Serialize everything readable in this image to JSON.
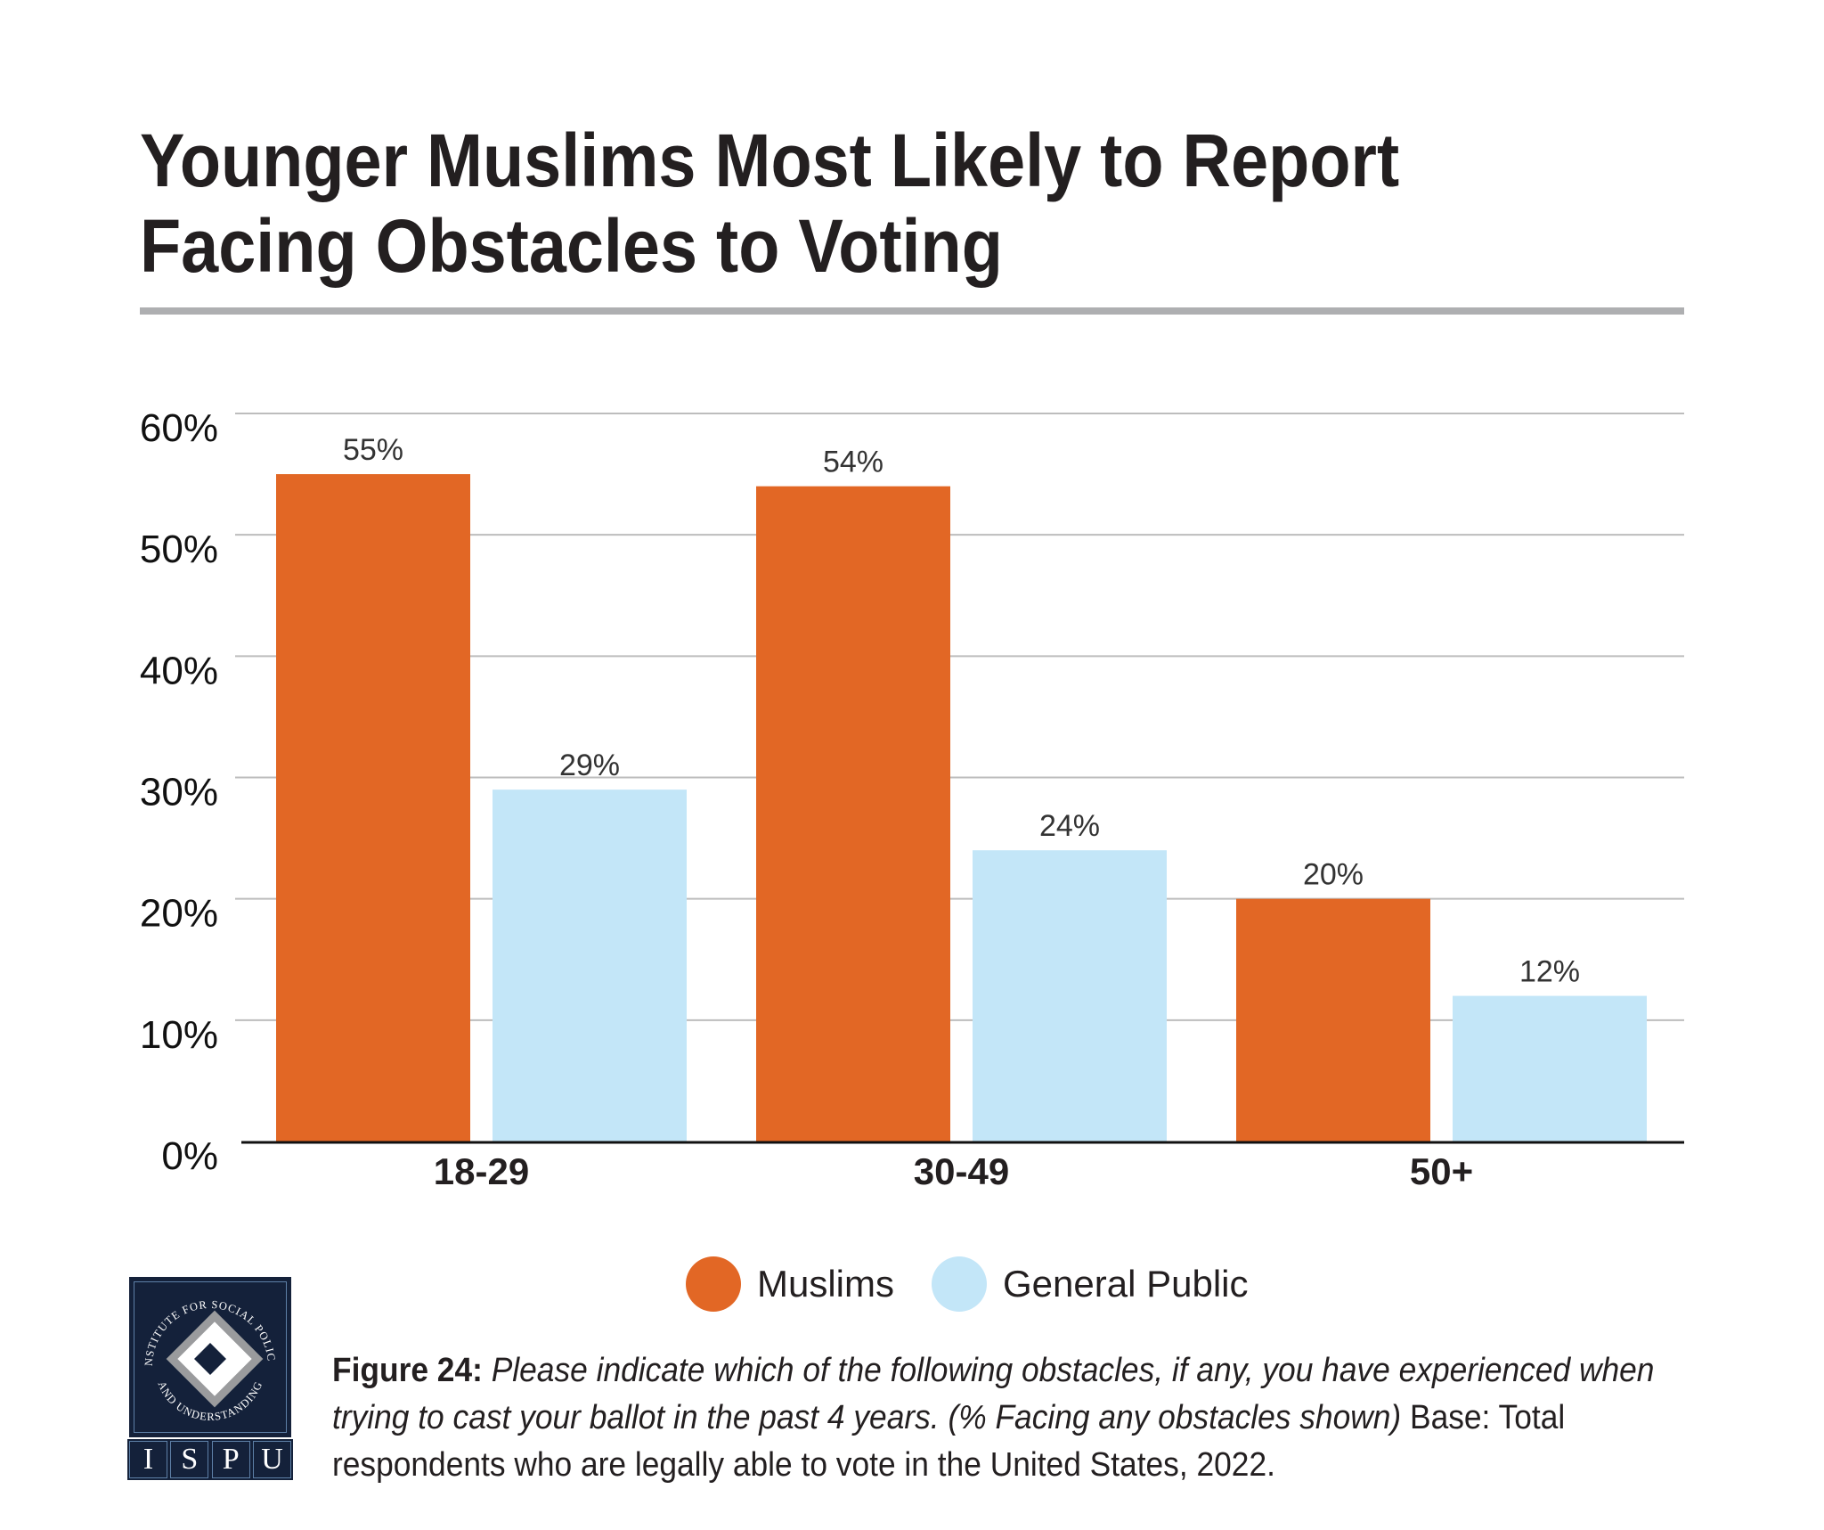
{
  "header": {
    "title_line1": "Younger Muslims Most Likely to Report",
    "title_line2": "Facing Obstacles to Voting"
  },
  "colors": {
    "muslims": "#E26725",
    "general_public": "#C3E6F8",
    "divider": "#AEAFB1",
    "gridline": "#BDBDBD",
    "logo_navy": "#14213A"
  },
  "chart_data": {
    "type": "bar",
    "title": "Younger Muslims Most Likely to Report Facing Obstacles to Voting",
    "xlabel": "",
    "ylabel": "",
    "categories": [
      "18-29",
      "30-49",
      "50+"
    ],
    "series": [
      {
        "name": "Muslims",
        "values": [
          55,
          54,
          20
        ],
        "labels": [
          "55%",
          "54%",
          "20%"
        ],
        "color": "#E26725"
      },
      {
        "name": "General Public",
        "values": [
          29,
          24,
          12
        ],
        "labels": [
          "29%",
          "24%",
          "12%"
        ],
        "color": "#C3E6F8"
      }
    ],
    "ylim": [
      0,
      60
    ],
    "yticks": [
      0,
      10,
      20,
      30,
      40,
      50,
      60
    ],
    "ytick_labels": [
      "0%",
      "10%",
      "20%",
      "30%",
      "40%",
      "50%",
      "60%"
    ],
    "grid": true,
    "legend_position": "bottom-center"
  },
  "legend": {
    "items": [
      {
        "label": "Muslims",
        "color": "#E26725"
      },
      {
        "label": "General Public",
        "color": "#C3E6F8"
      }
    ]
  },
  "caption": {
    "figure_label": "Figure 24:",
    "question": " Please indicate which of the following obstacles, if any, you have experienced when trying to cast your ballot in the past 4 years. (% Facing any obstacles shown)",
    "base": " Base: Total respondents who are legally able to vote in the United States, 2022."
  },
  "logo": {
    "ring_text": "INSTITUTE FOR SOCIAL POLICY AND UNDERSTANDING",
    "ring_text_top": "INSTITUTE FOR SOCIAL POLICY",
    "ring_text_bottom": "AND UNDERSTANDING",
    "letters": [
      "I",
      "S",
      "P",
      "U"
    ]
  }
}
